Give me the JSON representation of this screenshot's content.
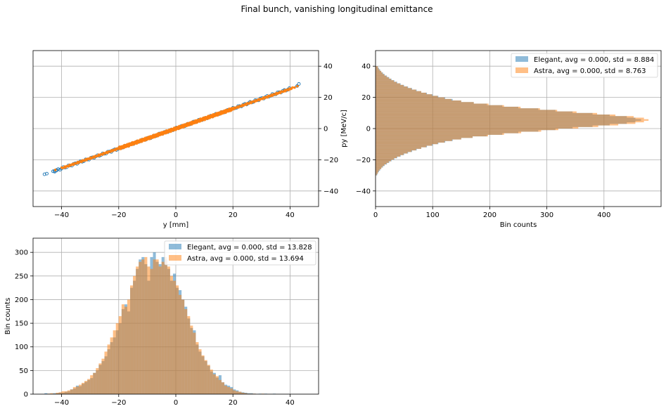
{
  "figure": {
    "suptitle": "Final bunch, vanishing longitudinal emittance"
  },
  "colors": {
    "elegant": "#1f77b4",
    "astra": "#ff7f0e",
    "grid": "#b0b0b0"
  },
  "chart_data": [
    {
      "id": "phase_space",
      "type": "scatter",
      "title": "",
      "xlabel": "y [mm]",
      "ylabel": "",
      "xlim": [
        -50,
        50
      ],
      "ylim": [
        -50,
        50
      ],
      "xticks": [
        -40,
        -20,
        0,
        20,
        40
      ],
      "yticks": [
        -40,
        -20,
        0,
        20,
        40
      ],
      "y_axis_side": "right",
      "grid": true,
      "series": [
        {
          "name": "",
          "marker": "hollow-circle",
          "slope": 0.64,
          "x_range": [
            -46,
            43
          ],
          "outliers": [
            [
              -46.0,
              -29.3
            ],
            [
              -45.2,
              -28.9
            ],
            [
              -42.5,
              -27.2
            ],
            [
              -41.8,
              -26.9
            ],
            [
              42.5,
              27.3
            ],
            [
              43.1,
              28.6
            ]
          ]
        },
        {
          "name": "",
          "marker": "filled-dot",
          "slope": 0.635,
          "x_range": [
            -42,
            43
          ],
          "outliers": [
            [
              -42.2,
              -26.5
            ],
            [
              41.6,
              26.3
            ],
            [
              42.6,
              27.2
            ]
          ]
        }
      ]
    },
    {
      "id": "py_hist",
      "type": "bar",
      "orientation": "horizontal",
      "title": "",
      "xlabel": "Bin counts",
      "ylabel": "py [MeV/c]",
      "xlim": [
        0,
        500
      ],
      "ylim": [
        -50,
        50
      ],
      "xticks": [
        0,
        100,
        200,
        300,
        400
      ],
      "yticks": [
        -40,
        -20,
        0,
        20,
        40
      ],
      "grid": true,
      "legend_position": "top-right",
      "bin_edges_start": -30,
      "bin_width": 1,
      "series": [
        {
          "name": "Elegant, avg = 0.000, std = 8.884",
          "values": [
            3,
            4,
            6,
            8,
            10,
            13,
            16,
            20,
            24,
            28,
            33,
            38,
            44,
            50,
            57,
            64,
            72,
            80,
            90,
            100,
            110,
            122,
            135,
            150,
            170,
            195,
            222,
            250,
            285,
            315,
            345,
            380,
            410,
            440,
            455,
            465,
            455,
            440,
            410,
            380,
            345,
            315,
            285,
            250,
            222,
            195,
            172,
            150,
            135,
            122,
            110,
            100,
            90,
            80,
            72,
            64,
            57,
            50,
            44,
            38,
            33,
            28,
            24,
            20,
            16,
            13,
            10,
            8,
            6,
            4
          ]
        },
        {
          "name": "Astra, avg = 0.000, std = 8.763",
          "values": [
            2,
            4,
            5,
            7,
            10,
            12,
            15,
            19,
            23,
            27,
            32,
            37,
            43,
            49,
            56,
            63,
            71,
            80,
            89,
            99,
            109,
            121,
            134,
            150,
            170,
            197,
            225,
            255,
            290,
            320,
            355,
            390,
            425,
            455,
            470,
            478,
            470,
            452,
            420,
            388,
            352,
            318,
            288,
            254,
            225,
            198,
            172,
            150,
            133,
            121,
            109,
            99,
            89,
            80,
            71,
            63,
            56,
            49,
            43,
            37,
            32,
            27,
            23,
            19,
            15,
            12,
            10,
            7,
            5,
            4
          ]
        }
      ]
    },
    {
      "id": "y_hist",
      "type": "bar",
      "orientation": "vertical",
      "title": "",
      "xlabel": "",
      "ylabel": "Bin counts",
      "xlim": [
        -50,
        50
      ],
      "ylim": [
        0,
        330
      ],
      "xticks": [
        -40,
        -20,
        0,
        20,
        40
      ],
      "yticks": [
        0,
        50,
        100,
        150,
        200,
        250,
        300
      ],
      "grid": true,
      "legend_position": "top-right",
      "bin_edges_start": -46,
      "bin_width": 1,
      "series": [
        {
          "name": "Elegant, avg = 0.000, std = 13.828",
          "values": [
            2,
            1,
            0,
            2,
            2,
            3,
            3,
            5,
            6,
            10,
            12,
            18,
            17,
            22,
            26,
            30,
            34,
            45,
            50,
            62,
            70,
            80,
            95,
            110,
            120,
            135,
            150,
            180,
            190,
            175,
            225,
            240,
            265,
            285,
            290,
            275,
            240,
            290,
            300,
            280,
            275,
            290,
            285,
            265,
            240,
            255,
            225,
            220,
            200,
            185,
            160,
            140,
            135,
            105,
            90,
            80,
            70,
            60,
            48,
            45,
            35,
            40,
            25,
            20,
            18,
            15,
            10,
            8,
            5,
            4,
            3,
            2,
            2,
            1,
            0,
            1,
            0,
            1,
            0,
            0,
            1,
            0,
            0,
            0,
            0,
            0,
            0,
            0,
            0,
            0
          ]
        },
        {
          "name": "Astra, avg = 0.000, std = 13.694",
          "values": [
            0,
            1,
            2,
            1,
            3,
            4,
            6,
            6,
            8,
            10,
            15,
            16,
            20,
            24,
            28,
            32,
            40,
            45,
            55,
            65,
            75,
            90,
            105,
            120,
            135,
            150,
            165,
            190,
            185,
            200,
            230,
            250,
            270,
            280,
            285,
            290,
            270,
            265,
            285,
            285,
            270,
            280,
            290,
            270,
            250,
            240,
            230,
            210,
            200,
            180,
            165,
            145,
            130,
            110,
            95,
            82,
            72,
            62,
            52,
            42,
            38,
            30,
            25,
            18,
            15,
            12,
            8,
            6,
            5,
            3,
            2,
            1,
            1,
            1,
            0,
            0,
            1,
            0,
            0,
            0,
            0,
            0,
            0,
            0,
            0,
            0,
            0,
            0,
            0,
            0
          ]
        }
      ]
    }
  ]
}
